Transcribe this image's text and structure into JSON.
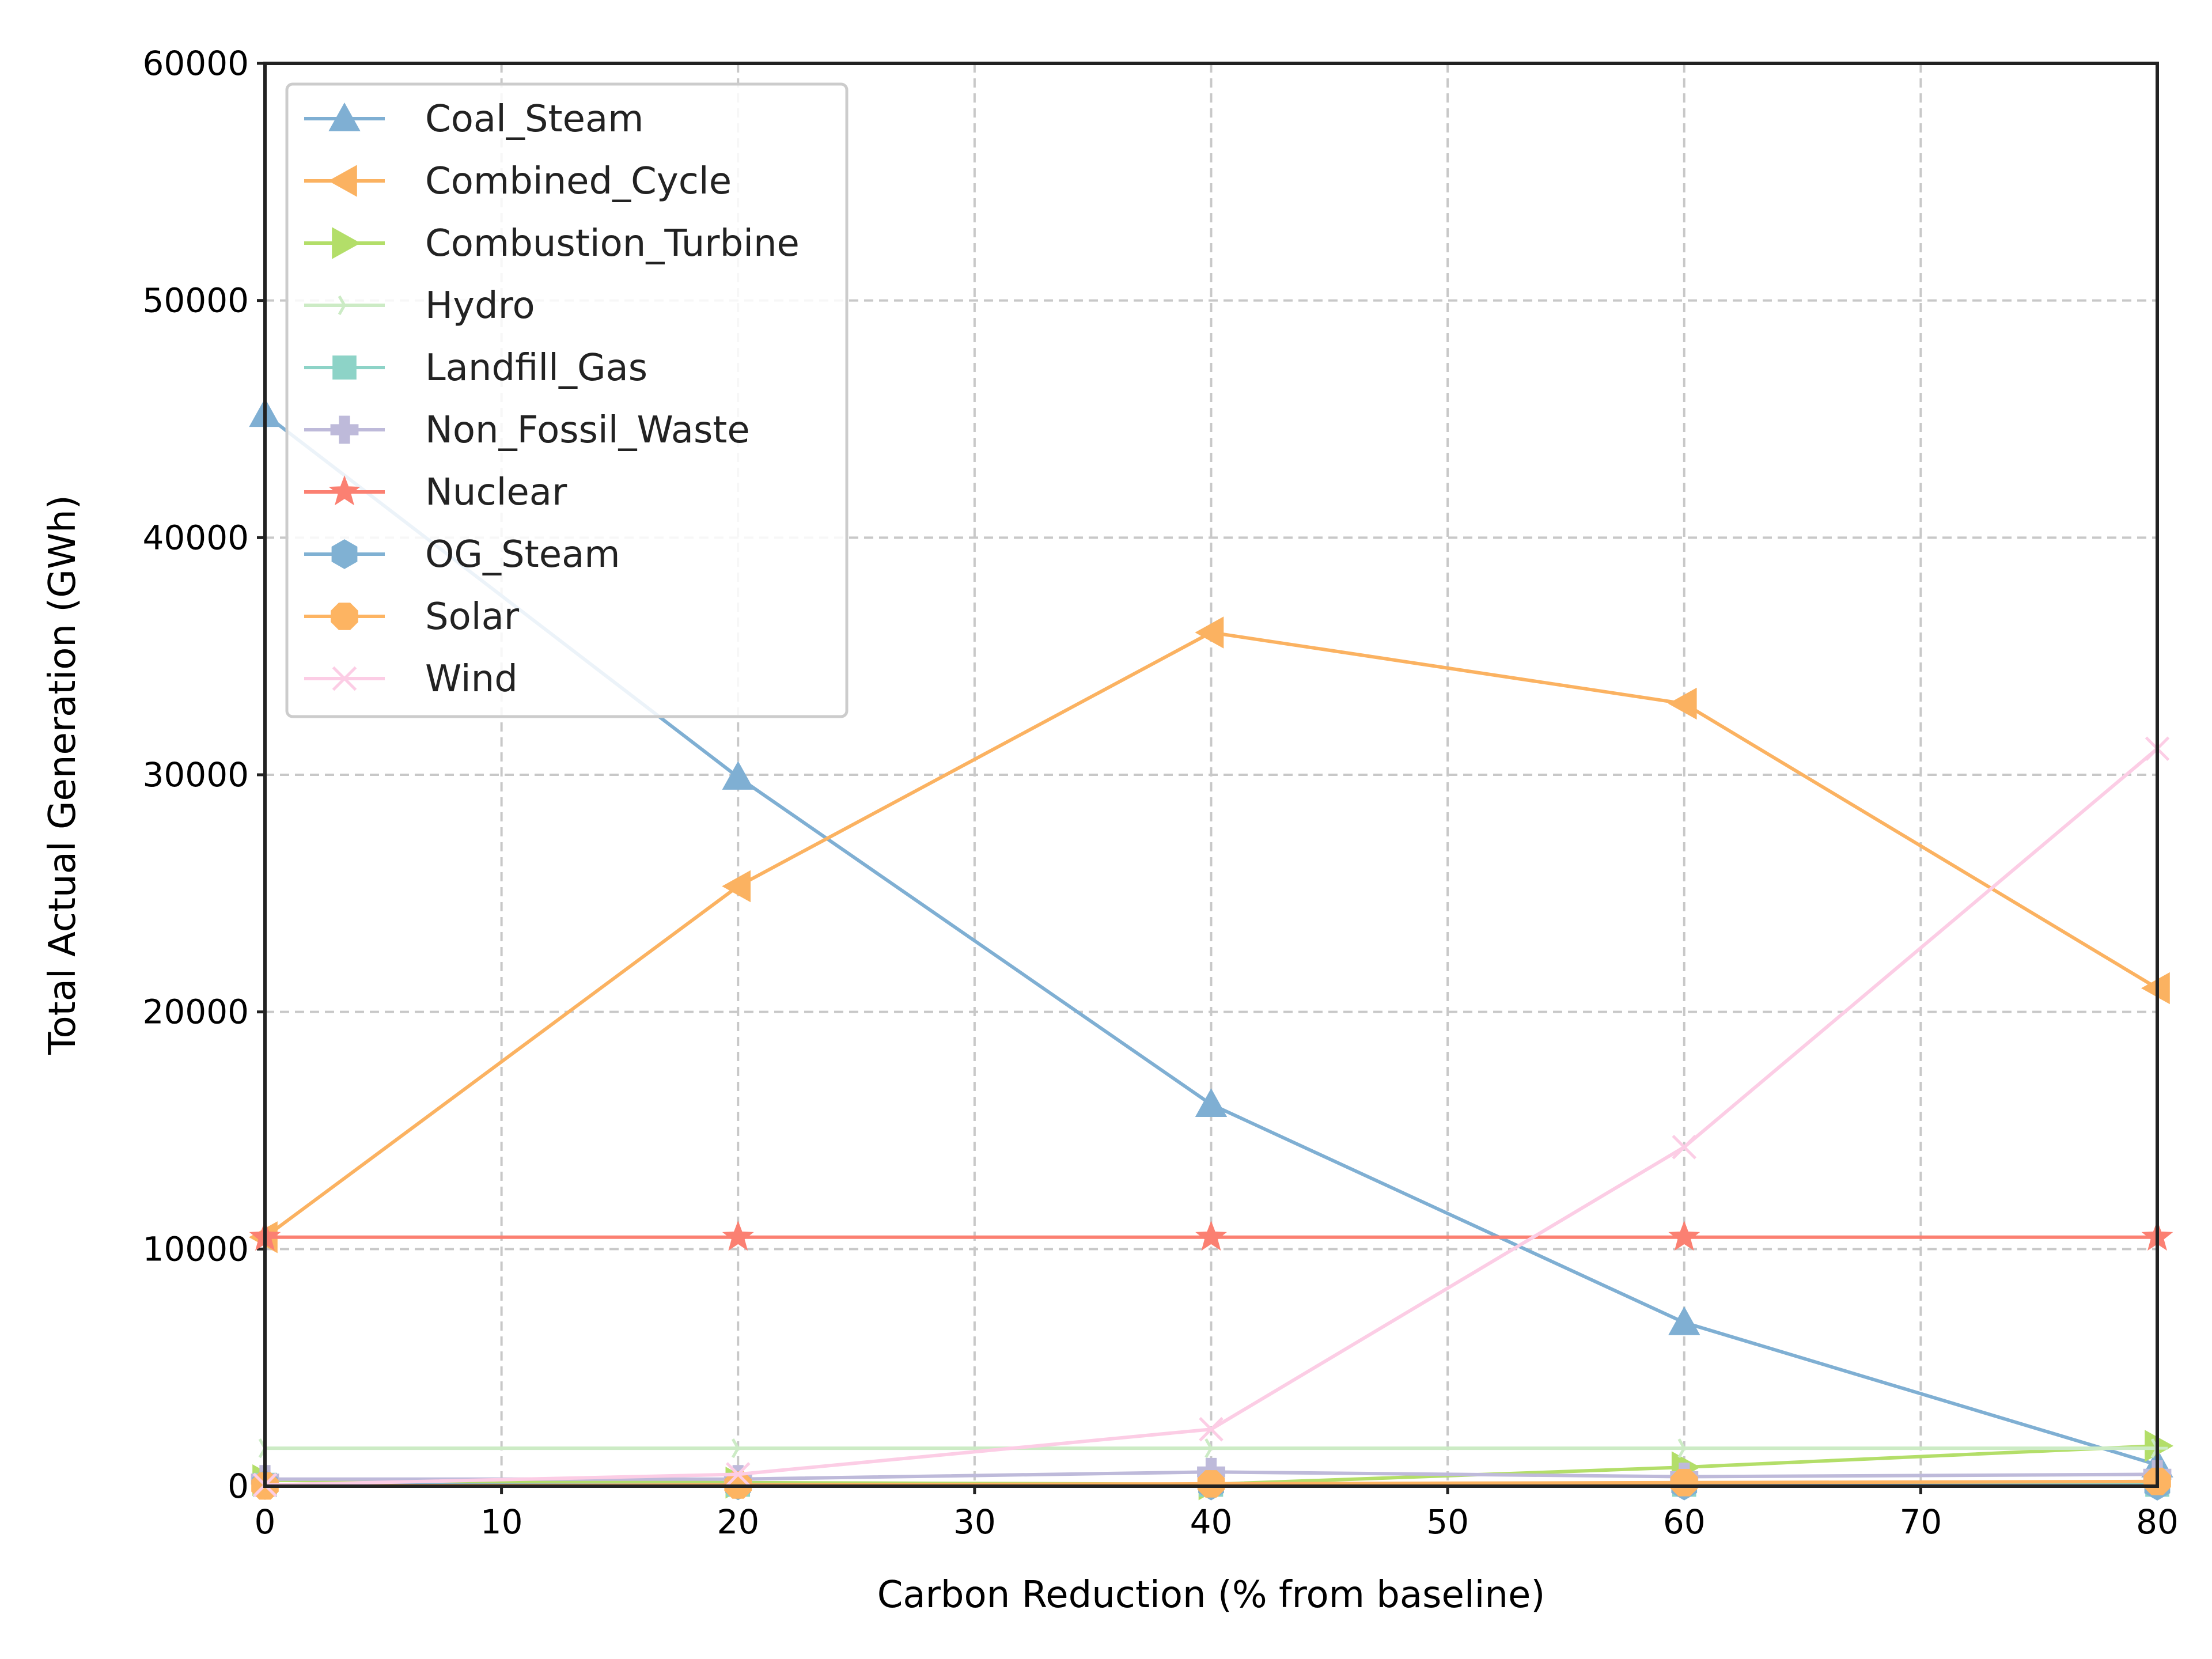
{
  "chart_data": {
    "type": "line",
    "title": "",
    "xlabel": "Carbon Reduction (% from baseline)",
    "ylabel": "Total Actual Generation (GWh)",
    "xlim": [
      0,
      80
    ],
    "ylim": [
      0,
      60000
    ],
    "x_ticks": [
      0,
      10,
      20,
      30,
      40,
      50,
      60,
      70,
      80
    ],
    "y_ticks": [
      0,
      10000,
      20000,
      30000,
      40000,
      50000,
      60000
    ],
    "grid": true,
    "legend_position": "top-left",
    "x": [
      0,
      20,
      40,
      60,
      80
    ],
    "series": [
      {
        "name": "Coal_Steam",
        "color": "#7fafd3",
        "marker": "triangle-up",
        "values": [
          45200,
          29900,
          16100,
          6900,
          900
        ]
      },
      {
        "name": "Combined_Cycle",
        "color": "#fbb261",
        "marker": "triangle-left",
        "values": [
          10500,
          25300,
          36000,
          33000,
          21000
        ]
      },
      {
        "name": "Combustion_Turbine",
        "color": "#b3de69",
        "marker": "triangle-right",
        "values": [
          250,
          150,
          80,
          800,
          1700
        ]
      },
      {
        "name": "Hydro",
        "color": "#ccebc5",
        "marker": "tri-right",
        "values": [
          1600,
          1600,
          1600,
          1600,
          1600
        ]
      },
      {
        "name": "Landfill_Gas",
        "color": "#8dd3c7",
        "marker": "square",
        "values": [
          60,
          60,
          60,
          60,
          60
        ]
      },
      {
        "name": "Non_Fossil_Waste",
        "color": "#bebada",
        "marker": "plus-filled",
        "values": [
          300,
          300,
          600,
          400,
          500
        ]
      },
      {
        "name": "Nuclear",
        "color": "#fb8072",
        "marker": "star",
        "values": [
          10500,
          10500,
          10500,
          10500,
          10500
        ]
      },
      {
        "name": "OG_Steam",
        "color": "#80b1d3",
        "marker": "hexagon",
        "values": [
          50,
          40,
          30,
          30,
          20
        ]
      },
      {
        "name": "Solar",
        "color": "#fdb462",
        "marker": "octagon",
        "values": [
          10,
          50,
          100,
          150,
          200
        ]
      },
      {
        "name": "Wind",
        "color": "#fccde5",
        "marker": "x",
        "values": [
          50,
          500,
          2400,
          14300,
          31100
        ]
      }
    ]
  }
}
